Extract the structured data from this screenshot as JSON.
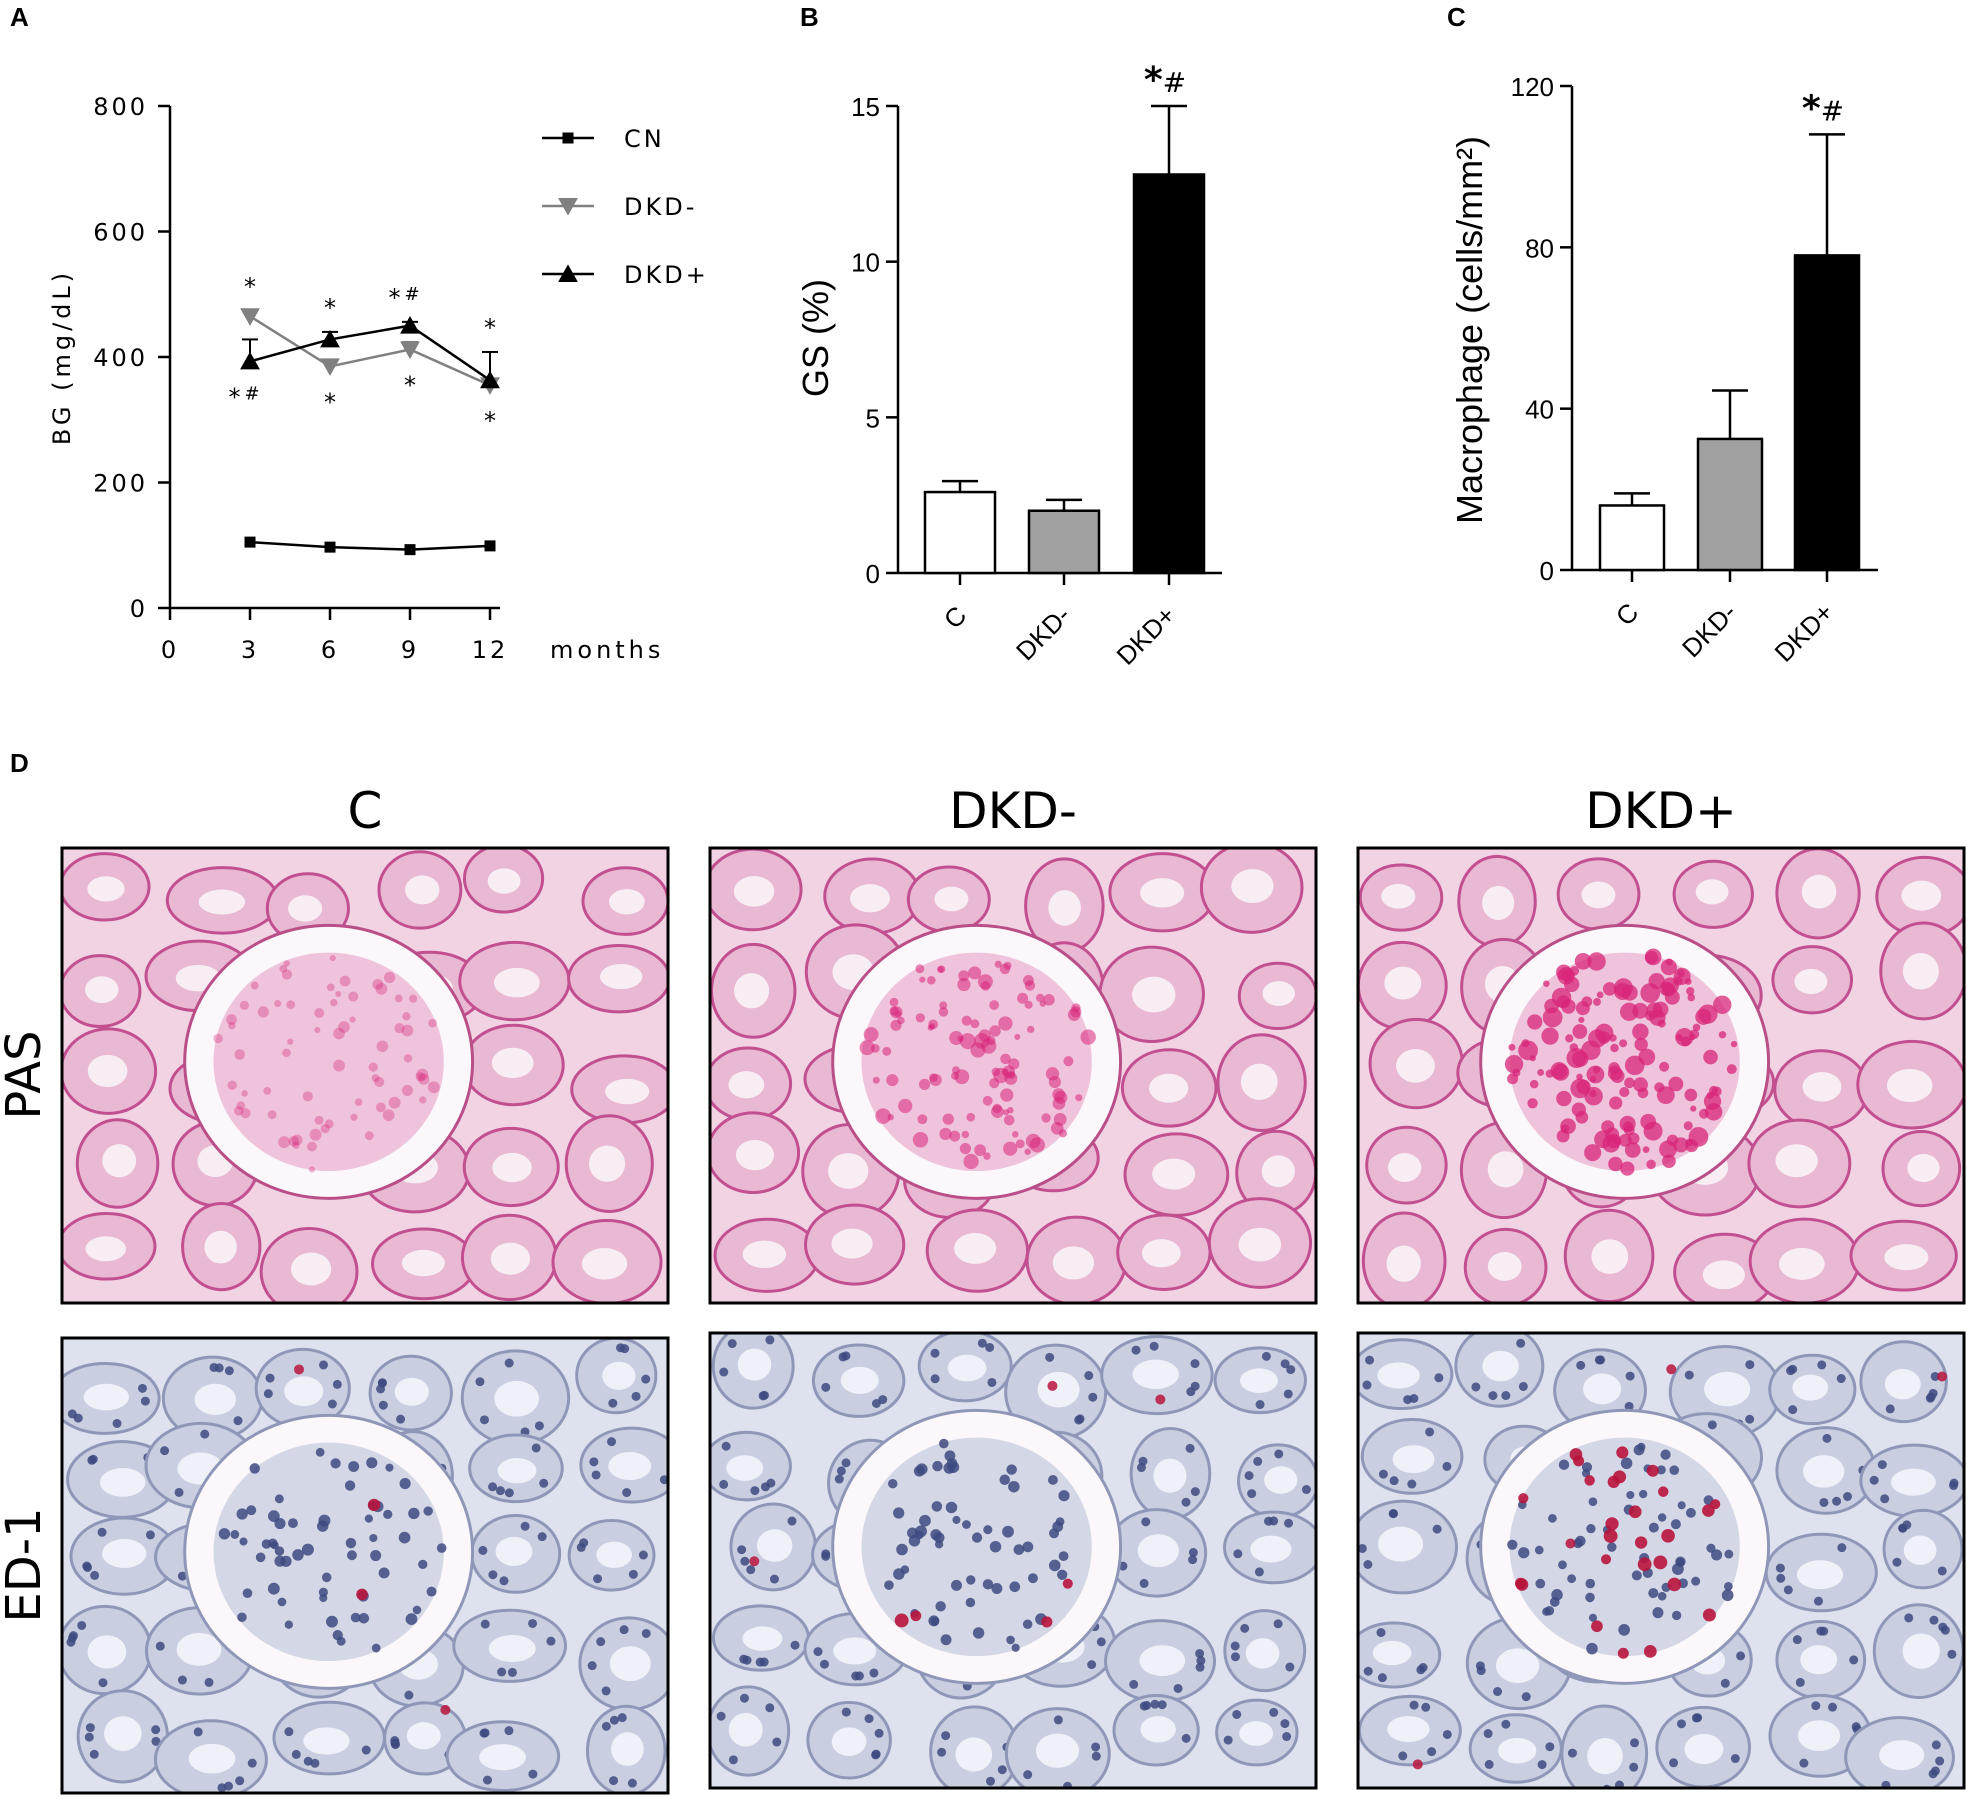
{
  "panels": {
    "a": {
      "letter": "A"
    },
    "b": {
      "letter": "B"
    },
    "c": {
      "letter": "C"
    },
    "d": {
      "letter": "D"
    }
  },
  "chart_data": [
    {
      "id": "A",
      "type": "line",
      "xlabel": "months",
      "ylabel": "BG (mg/dL)",
      "x": [
        3,
        6,
        9,
        12
      ],
      "xlim": [
        0,
        12
      ],
      "ylim": [
        0,
        800
      ],
      "xticks": [
        "0",
        "3",
        "6",
        "9",
        "12"
      ],
      "yticks": [
        "0",
        "200",
        "400",
        "600",
        "800"
      ],
      "legend_position": "top-right",
      "series": [
        {
          "name": "CN",
          "marker": "square",
          "color": "#000000",
          "values": [
            105,
            97,
            93,
            99
          ],
          "error": [
            0,
            0,
            0,
            0
          ]
        },
        {
          "name": "DKD-",
          "marker": "triangle-down",
          "color": "#808080",
          "values": [
            465,
            385,
            412,
            355
          ],
          "error": [
            8,
            10,
            12,
            10
          ]
        },
        {
          "name": "DKD+",
          "marker": "triangle-up",
          "color": "#000000",
          "values": [
            393,
            428,
            450,
            363
          ],
          "error": [
            35,
            12,
            6,
            45
          ]
        }
      ],
      "annotations": [
        {
          "x": 3,
          "text": "*",
          "side": "above",
          "series": "DKD-"
        },
        {
          "x": 3,
          "text": "*#",
          "side": "below",
          "series": "DKD+"
        },
        {
          "x": 6,
          "text": "*",
          "side": "above",
          "series": "DKD+"
        },
        {
          "x": 6,
          "text": "*",
          "side": "below",
          "series": "DKD-"
        },
        {
          "x": 9,
          "text": "*#",
          "side": "above",
          "series": "DKD+"
        },
        {
          "x": 9,
          "text": "*",
          "side": "below",
          "series": "DKD-"
        },
        {
          "x": 12,
          "text": "*",
          "side": "above",
          "series": "DKD+"
        },
        {
          "x": 12,
          "text": "*",
          "side": "below",
          "series": "DKD-"
        }
      ]
    },
    {
      "id": "B",
      "type": "bar",
      "ylabel": "GS (%)",
      "categories": [
        "C",
        "DKD-",
        "DKD+"
      ],
      "values": [
        2.6,
        2.0,
        12.8
      ],
      "error": [
        0.35,
        0.35,
        2.2
      ],
      "colors": [
        "#ffffff",
        "#a0a0a0",
        "#000000"
      ],
      "ylim": [
        0,
        15
      ],
      "yticks": [
        "0",
        "5",
        "10",
        "15"
      ],
      "significance": [
        {
          "category": "DKD+",
          "text": "*#"
        }
      ]
    },
    {
      "id": "C",
      "type": "bar",
      "ylabel": "Macrophage (cells/mm²)",
      "categories": [
        "C",
        "DKD-",
        "DKD+"
      ],
      "values": [
        16,
        32.5,
        78
      ],
      "error": [
        3,
        12,
        30
      ],
      "colors": [
        "#ffffff",
        "#a0a0a0",
        "#000000"
      ],
      "ylim": [
        0,
        120
      ],
      "yticks": [
        "0",
        "40",
        "80",
        "120"
      ],
      "significance": [
        {
          "category": "DKD+",
          "text": "*#"
        }
      ]
    }
  ],
  "micrographs": {
    "columns": [
      "C",
      "DKD-",
      "DKD+"
    ],
    "rows": [
      "PAS",
      "ED-1"
    ],
    "colors": {
      "pas_background": "#f1d3e3",
      "pas_stain": "#d8257a",
      "ed1_background": "#dde2ee",
      "ed1_nuclei": "#3e4a80",
      "ed1_positive": "#b8143c"
    }
  }
}
